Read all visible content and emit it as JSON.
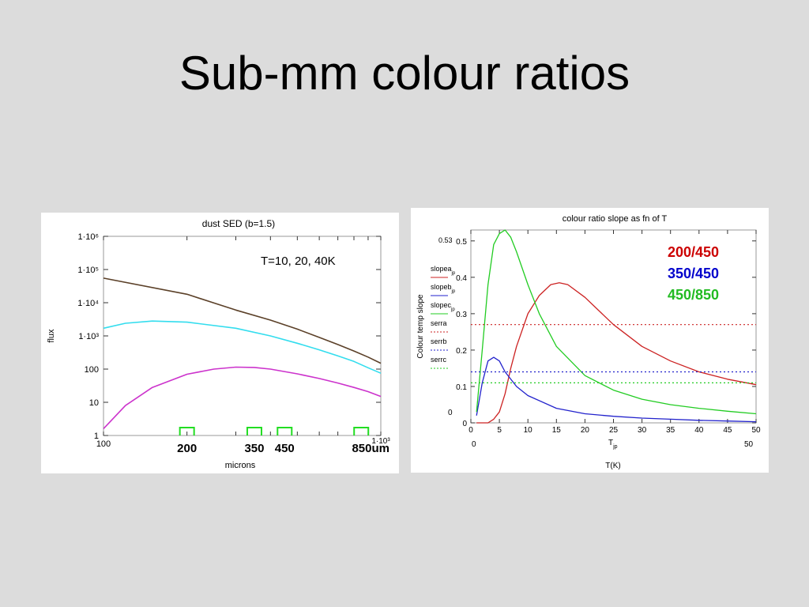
{
  "slide": {
    "title": "Sub-mm colour ratios"
  },
  "chart_data": [
    {
      "type": "line",
      "title": "dust SED (b=1.5)",
      "xlabel": "microns",
      "ylabel": "flux",
      "x_scale": "log",
      "y_scale": "log",
      "xlim": [
        100,
        1000
      ],
      "ylim": [
        1,
        1000000
      ],
      "x_tick_labels": [
        "100",
        "1·10³"
      ],
      "y_tick_labels": [
        "1",
        "10",
        "100",
        "1·10³",
        "1·10⁴",
        "1·10⁵",
        "1·10⁶"
      ],
      "y_ticks": [
        1,
        10,
        100,
        1000,
        10000,
        100000,
        1000000
      ],
      "annotation": "T=10, 20, 40K",
      "band_labels": [
        "200",
        "350",
        "450",
        "850um"
      ],
      "band_centers": [
        200,
        350,
        450,
        850
      ],
      "grid": false,
      "series": [
        {
          "color": "#5b4028",
          "x": [
            100,
            200,
            300,
            400,
            500,
            600,
            700,
            800,
            900,
            1000
          ],
          "y": [
            55000,
            18000,
            6000,
            3000,
            1600,
            900,
            550,
            350,
            230,
            150
          ]
        },
        {
          "color": "#33ddee",
          "x": [
            100,
            120,
            150,
            200,
            300,
            400,
            500,
            600,
            700,
            800,
            900,
            1000
          ],
          "y": [
            1700,
            2400,
            2800,
            2600,
            1700,
            1000,
            600,
            380,
            250,
            170,
            110,
            75
          ]
        },
        {
          "color": "#cc33cc",
          "x": [
            100,
            120,
            150,
            200,
            250,
            300,
            350,
            400,
            500,
            600,
            700,
            800,
            900,
            1000
          ],
          "y": [
            1.6,
            8,
            28,
            70,
            100,
            115,
            112,
            100,
            72,
            52,
            38,
            28,
            21,
            15
          ]
        }
      ]
    },
    {
      "type": "line",
      "title": "colour ratio slope as fn of T",
      "xlabel": "T(K)",
      "ylabel": "Colour temp slope",
      "x_axis_var": "T",
      "x_axis_var_sub": "jp",
      "xlim": [
        0,
        50
      ],
      "ylim": [
        0,
        0.53
      ],
      "x_tick_labels": [
        "0",
        "5",
        "10",
        "15",
        "20",
        "25",
        "30",
        "35",
        "40",
        "45",
        "50"
      ],
      "y_tick_labels": [
        "0",
        "0.1",
        "0.2",
        "0.3",
        "0.4",
        "0.5"
      ],
      "y_ticks": [
        0,
        0.1,
        0.2,
        0.3,
        0.4,
        0.5
      ],
      "ymax_label": "0.53",
      "ymin_label": "0",
      "xrange_labels": [
        "0",
        "50"
      ],
      "grid": false,
      "legend": [
        {
          "base": "slopea",
          "sub": "jp",
          "color": "#cc2222",
          "style": "solid"
        },
        {
          "base": "slopeb",
          "sub": "jp",
          "color": "#2222cc",
          "style": "solid"
        },
        {
          "base": "slopec",
          "sub": "jp",
          "color": "#22cc22",
          "style": "solid"
        },
        {
          "base": "serra",
          "sub": "",
          "color": "#cc2222",
          "style": "dotted"
        },
        {
          "base": "serrb",
          "sub": "",
          "color": "#2222cc",
          "style": "dotted"
        },
        {
          "base": "serrc",
          "sub": "",
          "color": "#22cc22",
          "style": "dotted"
        }
      ],
      "ratio_labels": [
        {
          "text": "200/450",
          "color": "#cc0000"
        },
        {
          "text": "350/450",
          "color": "#0000cc"
        },
        {
          "text": "450/850",
          "color": "#22bb22"
        }
      ],
      "series": [
        {
          "name": "200/450",
          "color": "#cc2222",
          "x": [
            1,
            3,
            4,
            5,
            6,
            7,
            8,
            10,
            12,
            14,
            15.5,
            17,
            20,
            25,
            30,
            35,
            40,
            45,
            50
          ],
          "y": [
            0,
            0,
            0.01,
            0.03,
            0.08,
            0.15,
            0.21,
            0.3,
            0.35,
            0.38,
            0.385,
            0.38,
            0.345,
            0.27,
            0.21,
            0.17,
            0.14,
            0.12,
            0.105
          ]
        },
        {
          "name": "350/450",
          "color": "#2222cc",
          "x": [
            1,
            2,
            3,
            4,
            5,
            6,
            8,
            10,
            15,
            20,
            25,
            30,
            35,
            40,
            45,
            50
          ],
          "y": [
            0.02,
            0.11,
            0.17,
            0.18,
            0.17,
            0.14,
            0.1,
            0.075,
            0.04,
            0.025,
            0.018,
            0.013,
            0.01,
            0.007,
            0.005,
            0.003
          ]
        },
        {
          "name": "450/850",
          "color": "#22cc22",
          "x": [
            1,
            2,
            3,
            4,
            5,
            6,
            7,
            8,
            10,
            12,
            15,
            20,
            25,
            30,
            35,
            40,
            45,
            50
          ],
          "y": [
            0.03,
            0.2,
            0.38,
            0.49,
            0.52,
            0.53,
            0.51,
            0.47,
            0.38,
            0.3,
            0.21,
            0.13,
            0.09,
            0.065,
            0.05,
            0.04,
            0.032,
            0.025
          ]
        },
        {
          "name": "serra",
          "color": "#cc2222",
          "dotted": true,
          "x": [
            0,
            50
          ],
          "y": [
            0.27,
            0.27
          ]
        },
        {
          "name": "serrb",
          "color": "#2222cc",
          "dotted": true,
          "x": [
            0,
            50
          ],
          "y": [
            0.14,
            0.14
          ]
        },
        {
          "name": "serrc",
          "color": "#22cc22",
          "dotted": true,
          "x": [
            0,
            50
          ],
          "y": [
            0.11,
            0.11
          ]
        }
      ]
    }
  ]
}
